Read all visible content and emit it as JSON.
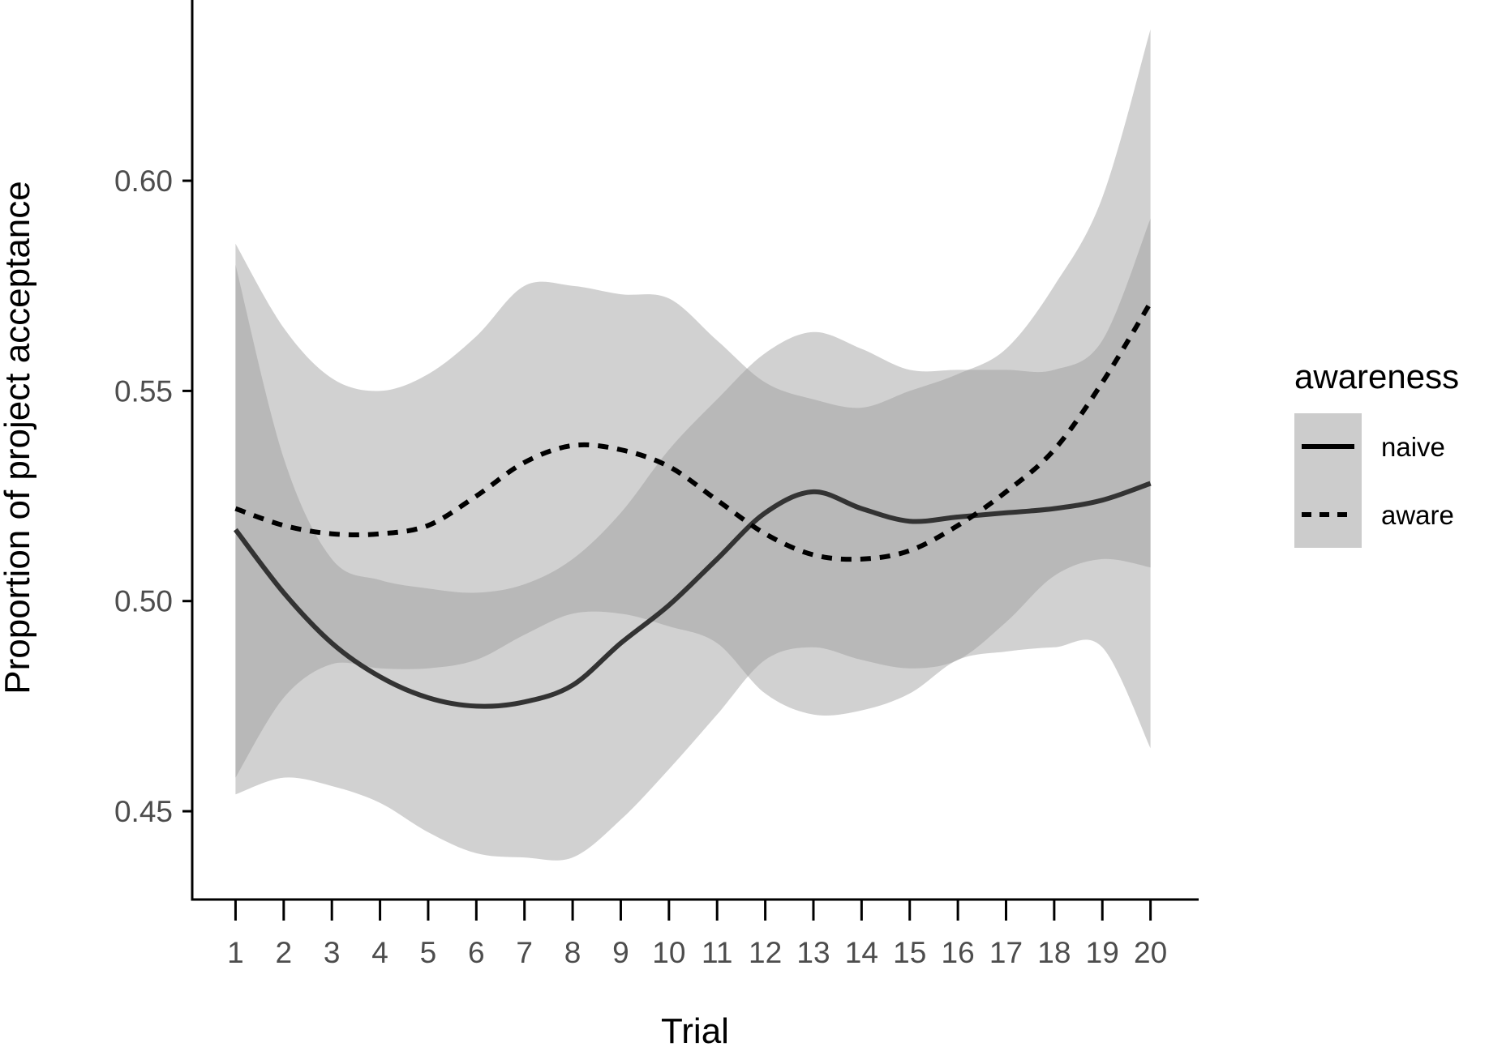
{
  "chart_data": {
    "type": "line",
    "xlabel": "Trial",
    "ylabel": "Proportion of project acceptance",
    "x": [
      1,
      2,
      3,
      4,
      5,
      6,
      7,
      8,
      9,
      10,
      11,
      12,
      13,
      14,
      15,
      16,
      17,
      18,
      19,
      20
    ],
    "xlim": [
      0.1,
      21.0
    ],
    "ylim": [
      0.429,
      0.643
    ],
    "y_ticks": [
      0.45,
      0.5,
      0.55,
      0.6
    ],
    "y_tick_labels": [
      "0.45",
      "0.50",
      "0.55",
      "0.60"
    ],
    "x_tick_labels": [
      "1",
      "2",
      "3",
      "4",
      "5",
      "6",
      "7",
      "8",
      "9",
      "10",
      "11",
      "12",
      "13",
      "14",
      "15",
      "16",
      "17",
      "18",
      "19",
      "20"
    ],
    "grid": false,
    "legend": {
      "title": "awareness",
      "position": "right",
      "entries": [
        {
          "label": "naive",
          "linetype": "solid"
        },
        {
          "label": "aware",
          "linetype": "dashed"
        }
      ]
    },
    "colors": {
      "ribbon": "#999999",
      "naive_line": "#333333",
      "aware_line": "#000000",
      "legend_key_bg": "#cccccc",
      "axis": "#000000",
      "tick_text": "#4d4d4d"
    },
    "series": [
      {
        "name": "naive",
        "linetype": "solid",
        "values": [
          0.517,
          0.502,
          0.49,
          0.482,
          0.477,
          0.475,
          0.476,
          0.48,
          0.49,
          0.499,
          0.51,
          0.521,
          0.526,
          0.522,
          0.519,
          0.52,
          0.521,
          0.522,
          0.524,
          0.528
        ],
        "lower": [
          0.458,
          0.477,
          0.485,
          0.484,
          0.484,
          0.486,
          0.492,
          0.497,
          0.497,
          0.494,
          0.49,
          0.478,
          0.473,
          0.474,
          0.478,
          0.486,
          0.488,
          0.489,
          0.489,
          0.465
        ],
        "upper": [
          0.58,
          0.534,
          0.51,
          0.505,
          0.503,
          0.502,
          0.504,
          0.51,
          0.521,
          0.536,
          0.548,
          0.559,
          0.564,
          0.56,
          0.555,
          0.555,
          0.555,
          0.555,
          0.562,
          0.591
        ]
      },
      {
        "name": "aware",
        "linetype": "dashed",
        "values": [
          0.522,
          0.518,
          0.516,
          0.516,
          0.518,
          0.525,
          0.533,
          0.537,
          0.536,
          0.532,
          0.524,
          0.516,
          0.511,
          0.51,
          0.512,
          0.518,
          0.526,
          0.536,
          0.552,
          0.571
        ],
        "lower": [
          0.454,
          0.458,
          0.456,
          0.452,
          0.445,
          0.44,
          0.439,
          0.439,
          0.448,
          0.46,
          0.473,
          0.486,
          0.489,
          0.486,
          0.484,
          0.486,
          0.495,
          0.506,
          0.51,
          0.508
        ],
        "upper": [
          0.585,
          0.565,
          0.553,
          0.55,
          0.554,
          0.563,
          0.575,
          0.575,
          0.573,
          0.572,
          0.562,
          0.552,
          0.548,
          0.546,
          0.55,
          0.554,
          0.56,
          0.575,
          0.596,
          0.636
        ]
      }
    ]
  }
}
